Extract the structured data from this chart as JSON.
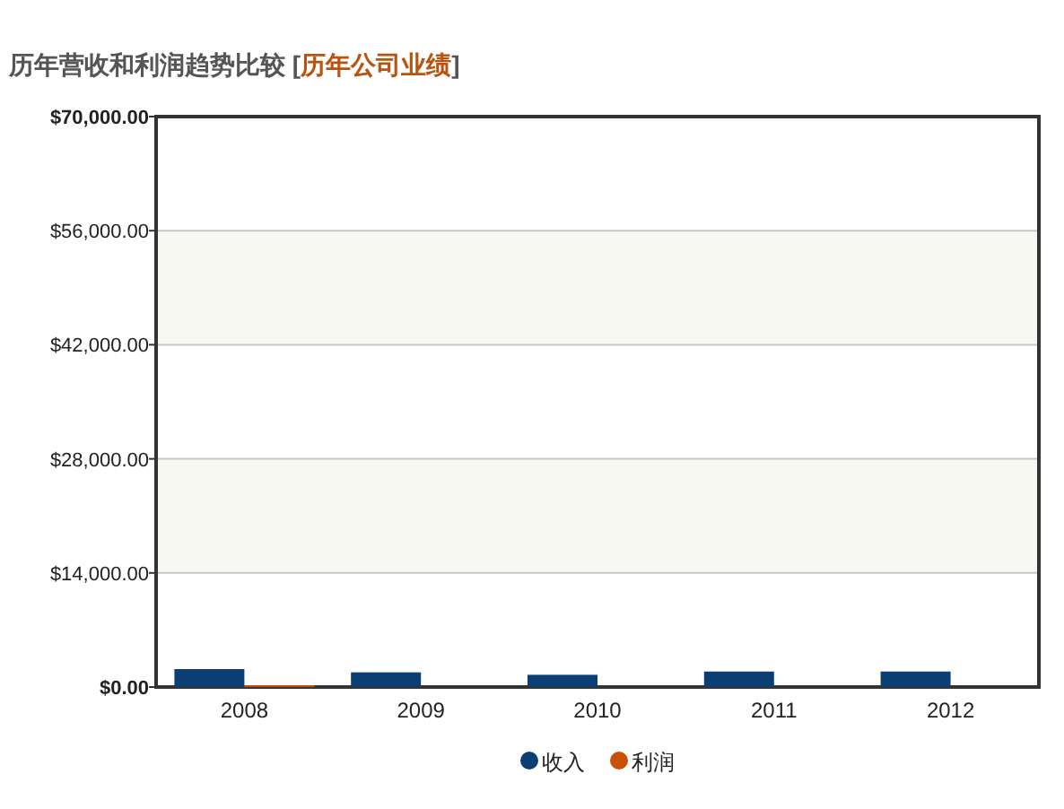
{
  "chart_data": {
    "type": "bar",
    "title": "历年营收和利润趋势比较",
    "subtitle": "[历年公司业绩]",
    "categories": [
      "2008",
      "2009",
      "2010",
      "2011",
      "2012"
    ],
    "series": [
      {
        "name": "收入",
        "color": "#0b3f74",
        "values": [
          2200,
          1800,
          1500,
          1900,
          1900
        ]
      },
      {
        "name": "利润",
        "color": "#c8500a",
        "values": [
          200,
          0,
          0,
          0,
          0
        ]
      }
    ],
    "ylim": [
      0,
      70000
    ],
    "yticks": [
      {
        "value": 0,
        "label": "$0.00"
      },
      {
        "value": 14000,
        "label": "$14,000.00"
      },
      {
        "value": 28000,
        "label": "$28,000.00"
      },
      {
        "value": 42000,
        "label": "$42,000.00"
      },
      {
        "value": 56000,
        "label": "$56,000.00"
      },
      {
        "value": 70000,
        "label": "$70,000.00"
      }
    ],
    "grid": "y",
    "legend": "bottom"
  }
}
